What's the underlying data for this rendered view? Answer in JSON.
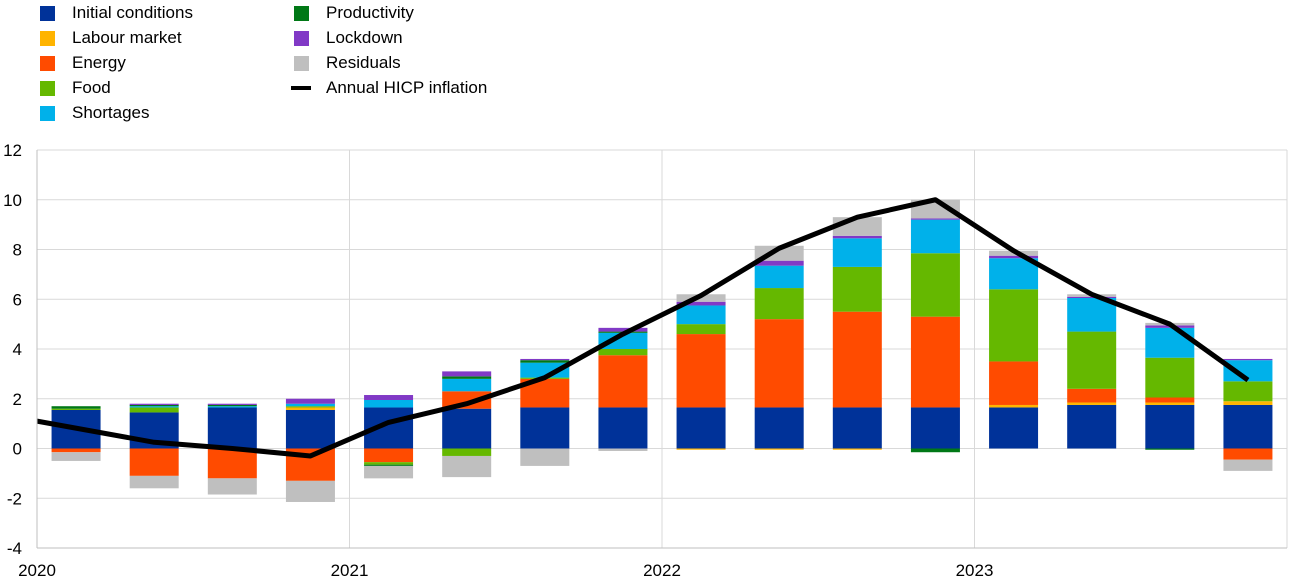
{
  "chart_data": {
    "type": "bar",
    "stacked": true,
    "title": "",
    "xlabel": "",
    "ylabel": "",
    "ylim": [
      -4,
      12
    ],
    "yticks": [
      -4,
      -2,
      0,
      2,
      4,
      6,
      8,
      10,
      12
    ],
    "x_axis_labels": [
      "2020",
      "2021",
      "2022",
      "2023"
    ],
    "grid": true,
    "legend_position": "top-left",
    "periods": [
      "2020 Q1",
      "2020 Q2",
      "2020 Q3",
      "2020 Q4",
      "2021 Q1",
      "2021 Q2",
      "2021 Q3",
      "2021 Q4",
      "2022 Q1",
      "2022 Q2",
      "2022 Q3",
      "2022 Q4",
      "2023 Q1",
      "2023 Q2",
      "2023 Q3",
      "2023 Q4"
    ],
    "series": [
      {
        "name": "Initial conditions",
        "color": "#003299",
        "values": [
          1.55,
          1.45,
          1.65,
          1.55,
          1.65,
          1.6,
          1.65,
          1.65,
          1.65,
          1.65,
          1.65,
          1.65,
          1.65,
          1.75,
          1.75,
          1.75
        ]
      },
      {
        "name": "Labour market",
        "color": "#FFB400",
        "values": [
          0.0,
          0.0,
          0.0,
          0.1,
          0.0,
          0.0,
          0.0,
          0.0,
          -0.05,
          -0.05,
          -0.05,
          0.0,
          0.1,
          0.1,
          0.1,
          0.15
        ]
      },
      {
        "name": "Energy",
        "color": "#FF4B00",
        "values": [
          -0.15,
          -1.1,
          -1.2,
          -1.3,
          -0.55,
          0.7,
          1.15,
          2.1,
          2.95,
          3.55,
          3.85,
          3.65,
          1.75,
          0.55,
          0.2,
          -0.45
        ]
      },
      {
        "name": "Food",
        "color": "#65B800",
        "values": [
          0.05,
          0.2,
          0.0,
          0.05,
          -0.1,
          -0.3,
          0.05,
          0.25,
          0.4,
          1.25,
          1.8,
          2.55,
          2.9,
          2.3,
          1.6,
          0.8
        ]
      },
      {
        "name": "Shortages",
        "color": "#00B1EA",
        "values": [
          0.0,
          0.05,
          0.05,
          0.1,
          0.3,
          0.5,
          0.6,
          0.65,
          0.75,
          0.9,
          1.15,
          1.35,
          1.25,
          1.35,
          1.2,
          0.85
        ]
      },
      {
        "name": "Productivity",
        "color": "#007816",
        "values": [
          0.1,
          0.05,
          0.05,
          0.0,
          -0.05,
          0.1,
          0.1,
          0.05,
          0.0,
          0.0,
          0.0,
          -0.15,
          0.0,
          0.0,
          -0.05,
          0.0
        ]
      },
      {
        "name": "Lockdown",
        "color": "#8139C6",
        "values": [
          0.0,
          0.05,
          0.05,
          0.2,
          0.2,
          0.2,
          0.05,
          0.15,
          0.15,
          0.2,
          0.1,
          0.05,
          0.1,
          0.05,
          0.1,
          0.05
        ]
      },
      {
        "name": "Residuals",
        "color": "#BFBFBF",
        "values": [
          -0.35,
          -0.5,
          -0.65,
          -0.85,
          -0.5,
          -0.85,
          -0.7,
          -0.1,
          0.3,
          0.6,
          0.75,
          0.75,
          0.2,
          0.1,
          0.1,
          -0.45
        ]
      }
    ],
    "line": {
      "name": "Annual HICP inflation",
      "color": "#000000",
      "values": [
        1.1,
        0.25,
        0.0,
        -0.3,
        1.05,
        1.8,
        2.85,
        4.6,
        6.15,
        8.05,
        9.3,
        10.0,
        7.95,
        6.2,
        5.0,
        2.75
      ]
    }
  }
}
